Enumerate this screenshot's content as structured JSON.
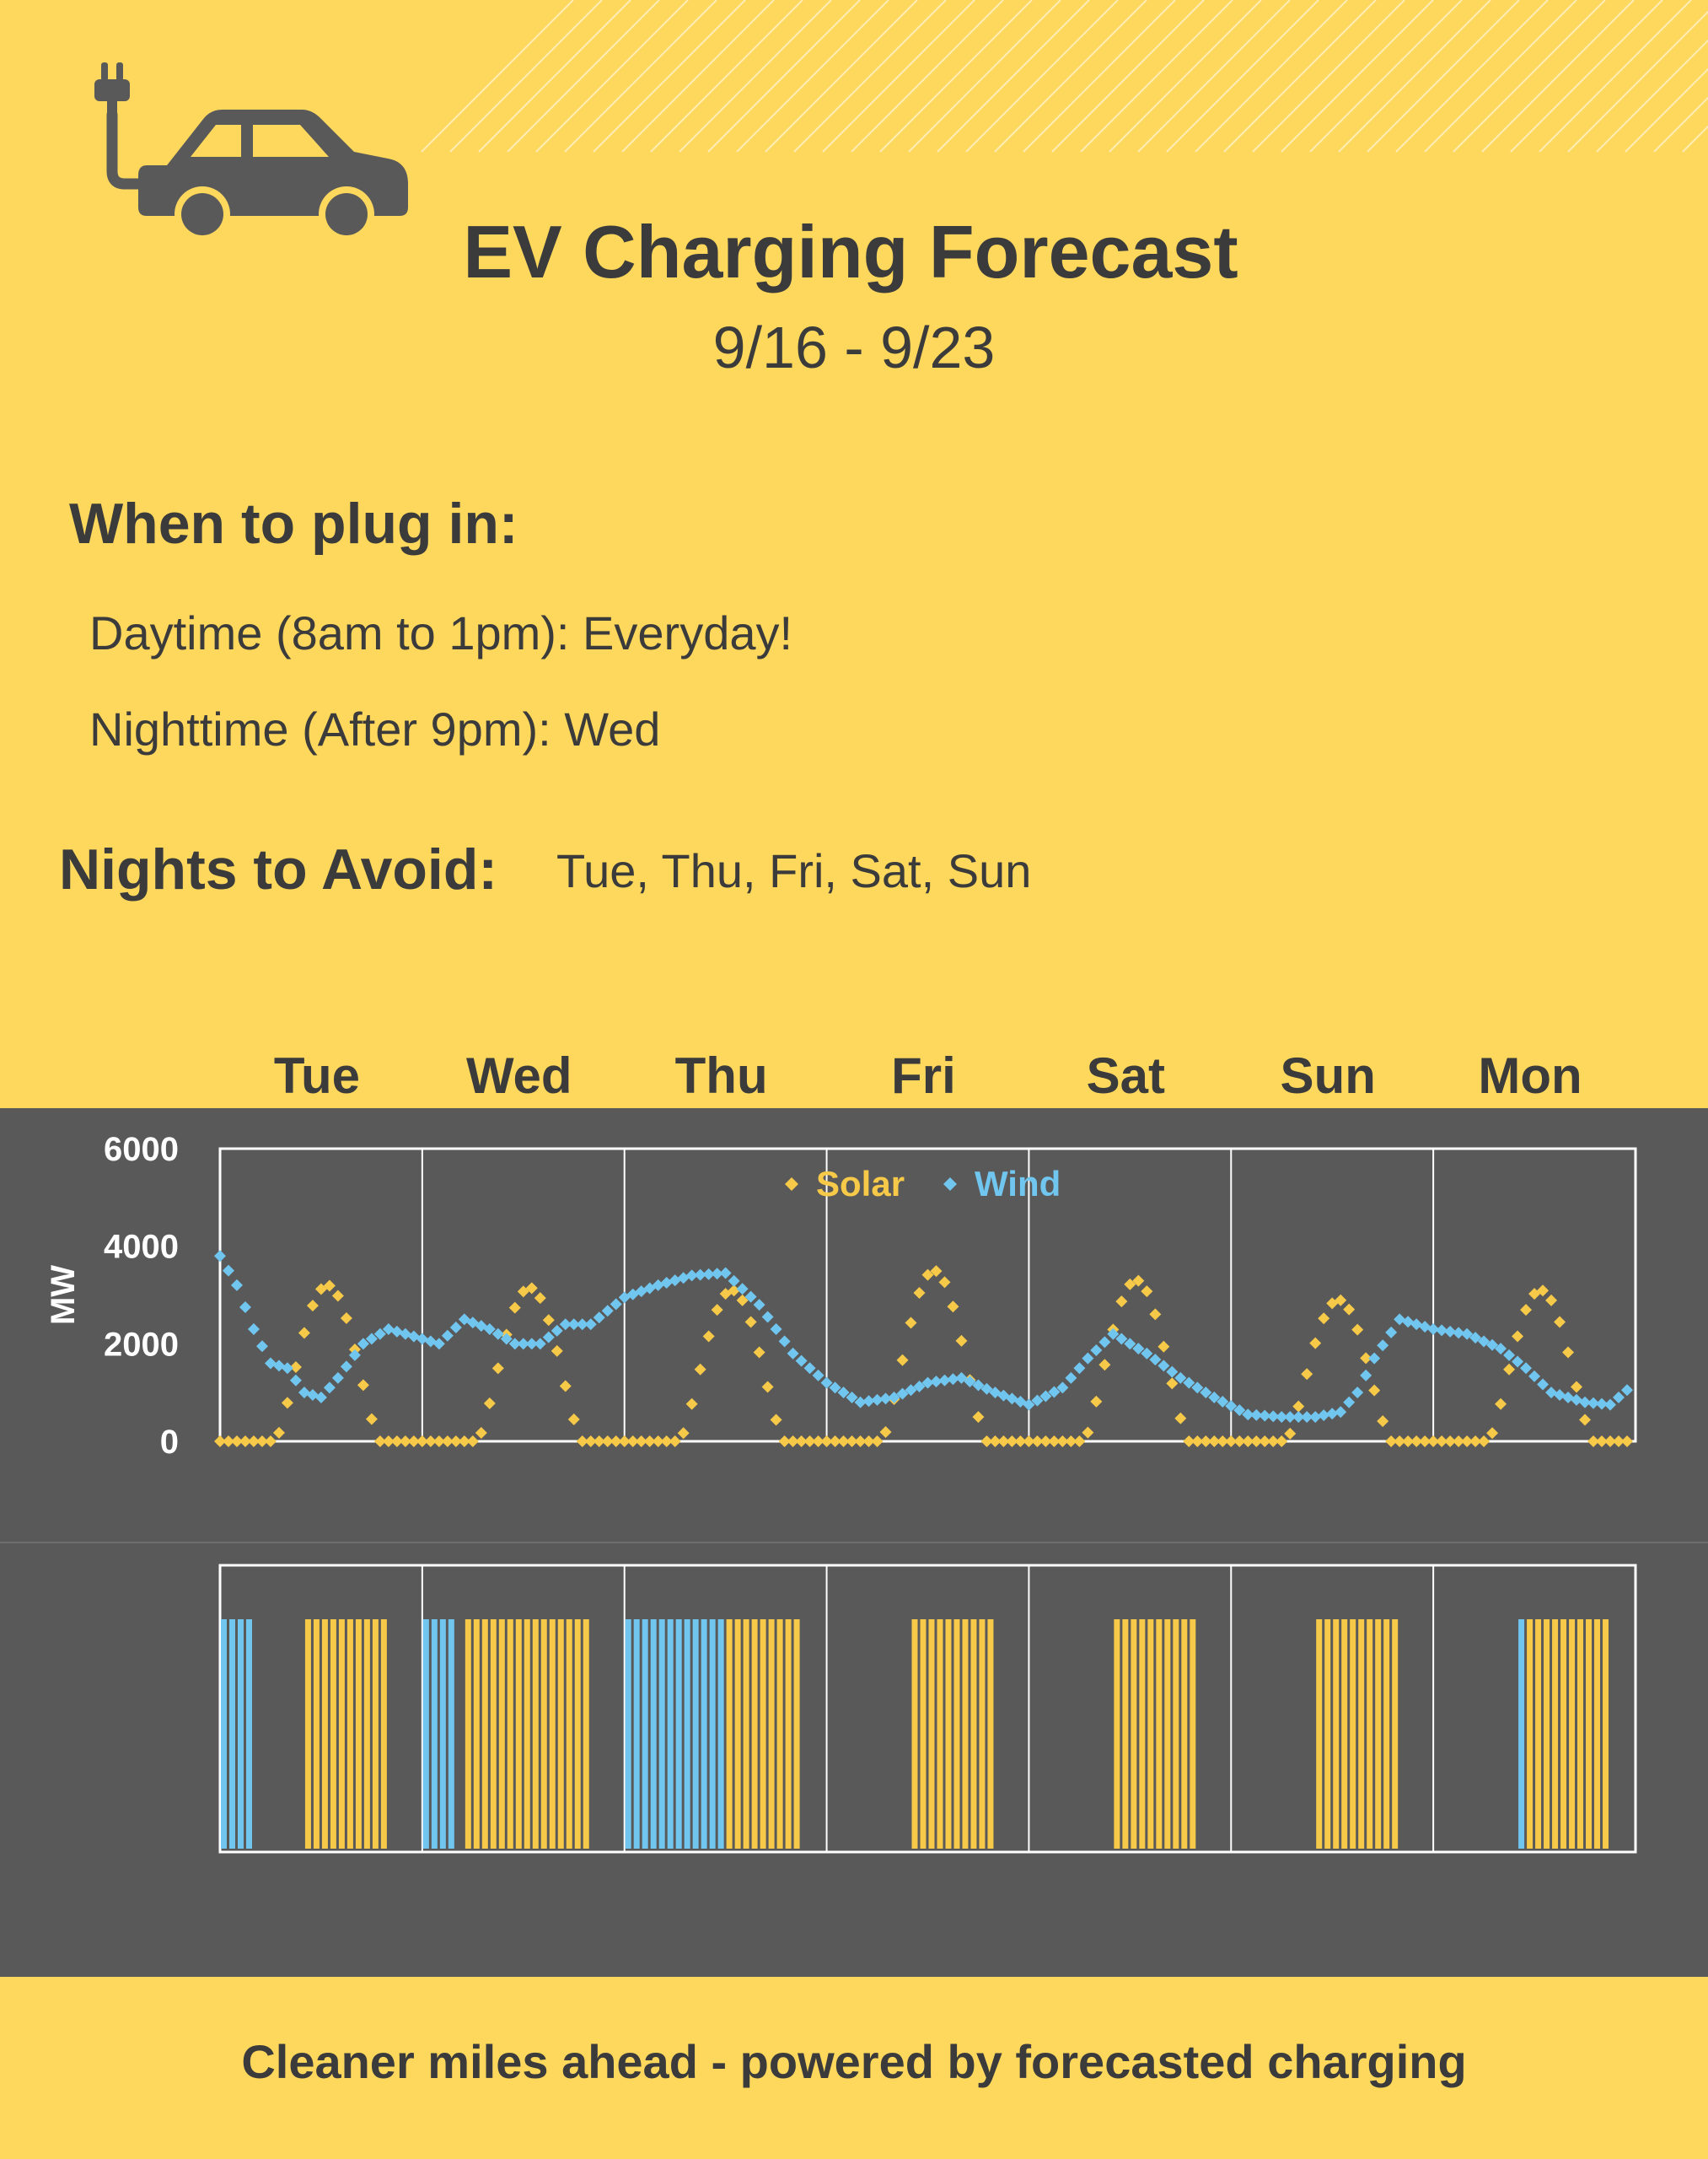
{
  "header": {
    "title": "EV Charging Forecast",
    "date_range": "9/16  -  9/23"
  },
  "icons": {
    "car": "ev-car-with-plug-icon",
    "stripes": "diagonal-stripes-decoration"
  },
  "plug_in": {
    "heading": "When to plug in:",
    "daytime": "Daytime (8am to 1pm): Everyday!",
    "nighttime": "Nighttime  (After 9pm): Wed"
  },
  "avoid": {
    "heading": "Nights to Avoid:",
    "days": "Tue, Thu, Fri, Sat, Sun"
  },
  "footer": {
    "tagline": "Cleaner miles ahead - powered by forecasted charging"
  },
  "colors": {
    "background": "#FDD85D",
    "panel": "#595959",
    "solar": "#F7C948",
    "wind": "#71C6F0",
    "text": "#3b3b3b"
  },
  "chart_data": [
    {
      "type": "scatter",
      "categories": [
        "Tue",
        "Wed",
        "Thu",
        "Fri",
        "Sat",
        "Sun",
        "Mon"
      ],
      "ylabel": "MW",
      "ylim": [
        0,
        6000
      ],
      "yticks": [
        0,
        2000,
        4000,
        6000
      ],
      "grid": "vertical lines at day boundaries",
      "legend": "top-center",
      "series": [
        {
          "name": "Solar",
          "points_per_day": 24,
          "daily_peaks": [
            3200,
            3150,
            3100,
            3500,
            3300,
            2900,
            3100
          ],
          "note_values": "approximate hourly MW estimated from markers; zero overnight"
        },
        {
          "name": "Wind",
          "points_per_day": 24,
          "anchors": [
            [
              0,
              3800
            ],
            [
              2,
              3200
            ],
            [
              4,
              2300
            ],
            [
              6,
              1600
            ],
            [
              8,
              1500
            ],
            [
              10,
              1000
            ],
            [
              12,
              900
            ],
            [
              14,
              1300
            ],
            [
              17,
              2000
            ],
            [
              20,
              2300
            ],
            [
              24,
              2100
            ],
            [
              26,
              2000
            ],
            [
              29,
              2500
            ],
            [
              32,
              2300
            ],
            [
              35,
              2000
            ],
            [
              38,
              2000
            ],
            [
              41,
              2400
            ],
            [
              44,
              2400
            ],
            [
              48,
              2950
            ],
            [
              52,
              3200
            ],
            [
              56,
              3400
            ],
            [
              60,
              3450
            ],
            [
              64,
              2800
            ],
            [
              68,
              1800
            ],
            [
              72,
              1200
            ],
            [
              76,
              800
            ],
            [
              80,
              900
            ],
            [
              84,
              1200
            ],
            [
              88,
              1300
            ],
            [
              92,
              1000
            ],
            [
              96,
              750
            ],
            [
              100,
              1100
            ],
            [
              103,
              1700
            ],
            [
              106,
              2200
            ],
            [
              110,
              1800
            ],
            [
              114,
              1300
            ],
            [
              118,
              900
            ],
            [
              122,
              550
            ],
            [
              126,
              500
            ],
            [
              130,
              500
            ],
            [
              133,
              600
            ],
            [
              135,
              1000
            ],
            [
              137,
              1700
            ],
            [
              140,
              2500
            ],
            [
              144,
              2300
            ],
            [
              148,
              2200
            ],
            [
              152,
              1900
            ],
            [
              155,
              1500
            ],
            [
              158,
              1000
            ],
            [
              162,
              800
            ],
            [
              165,
              750
            ],
            [
              168,
              1200
            ],
            [
              172,
              1500
            ],
            [
              176,
              1900
            ],
            [
              180,
              2200
            ],
            [
              184,
              2400
            ],
            [
              188,
              2350
            ],
            [
              192,
              2200
            ],
            [
              196,
              1900
            ],
            [
              200,
              1600
            ],
            [
              204,
              1300
            ],
            [
              207,
              800
            ]
          ]
        }
      ]
    },
    {
      "type": "bar",
      "categories": [
        "Tue",
        "Wed",
        "Thu",
        "Fri",
        "Sat",
        "Sun",
        "Mon"
      ],
      "description_values": "Recommended charging hours per day (1 = charge), colored by dominant source",
      "series": [
        {
          "name": "Wind",
          "hours": {
            "Tue": [
              0,
              1,
              2,
              3
            ],
            "Wed": [
              0,
              1,
              2,
              3
            ],
            "Thu": [
              0,
              1,
              2,
              3,
              4,
              5,
              6,
              7,
              8,
              9,
              10,
              11
            ],
            "Fri": [],
            "Sat": [],
            "Sun": [],
            "Mon": [
              10
            ]
          }
        },
        {
          "name": "Solar",
          "hours": {
            "Tue": [
              10,
              11,
              12,
              13,
              14,
              15,
              16,
              17,
              18,
              19
            ],
            "Wed": [
              5,
              6,
              7,
              8,
              9,
              10,
              11,
              12,
              13,
              14,
              15,
              16,
              17,
              18,
              19
            ],
            "Thu": [
              12,
              13,
              14,
              15,
              16,
              17,
              18,
              19,
              20
            ],
            "Fri": [
              10,
              11,
              12,
              13,
              14,
              15,
              16,
              17,
              18,
              19
            ],
            "Sat": [
              10,
              11,
              12,
              13,
              14,
              15,
              16,
              17,
              18,
              19
            ],
            "Sun": [
              10,
              11,
              12,
              13,
              14,
              15,
              16,
              17,
              18,
              19
            ],
            "Mon": [
              11,
              12,
              13,
              14,
              15,
              16,
              17,
              18,
              19,
              20
            ]
          }
        }
      ]
    }
  ]
}
